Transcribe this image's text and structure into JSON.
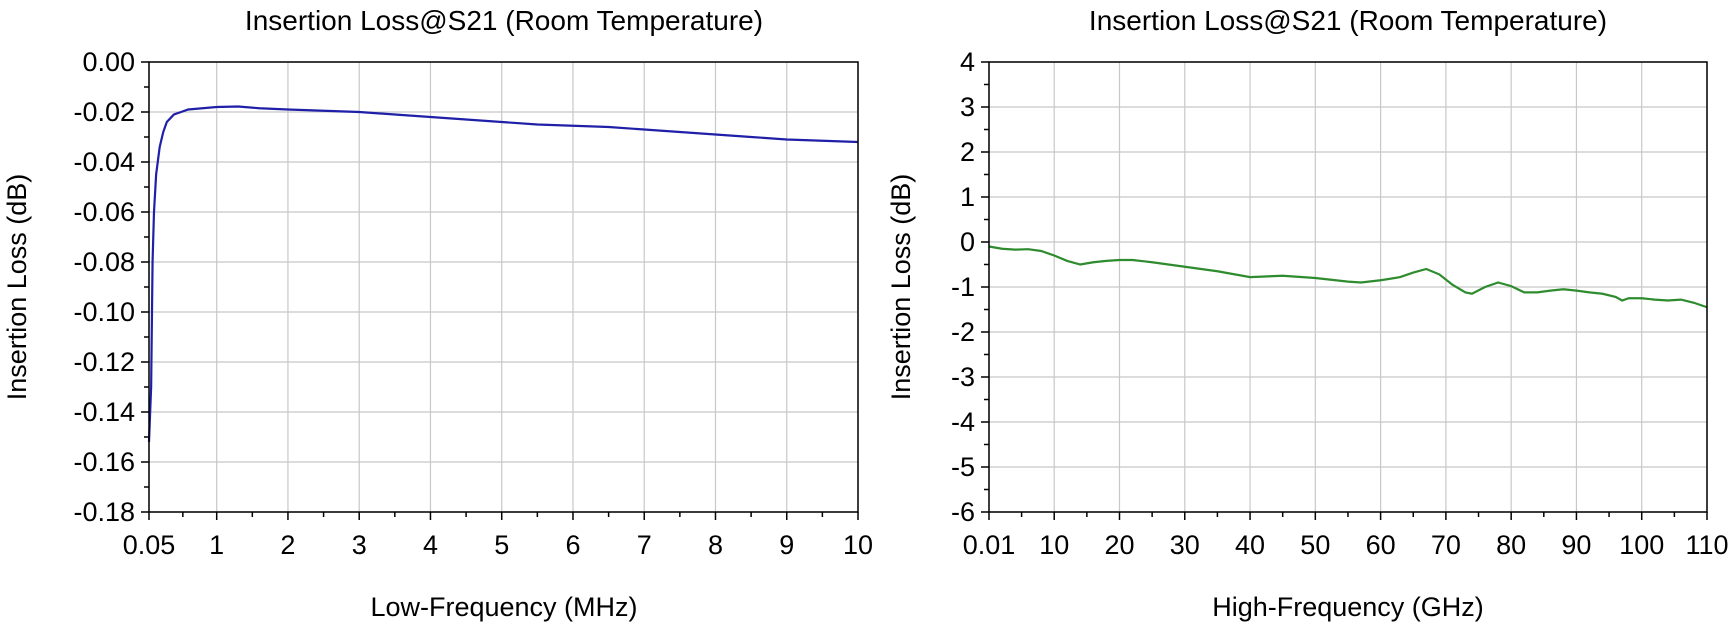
{
  "chart_data": [
    {
      "type": "line",
      "title": "Insertion Loss@S21 (Room Temperature)",
      "xlabel": "Low-Frequency (MHz)",
      "ylabel": "Insertion Loss (dB)",
      "x_ticks": [
        "0.05",
        "1",
        "2",
        "3",
        "4",
        "5",
        "6",
        "7",
        "8",
        "9",
        "10"
      ],
      "x_tick_values": [
        0.05,
        1,
        2,
        3,
        4,
        5,
        6,
        7,
        8,
        9,
        10
      ],
      "y_ticks": [
        "0.00",
        "-0.02",
        "-0.04",
        "-0.06",
        "-0.08",
        "-0.10",
        "-0.12",
        "-0.14",
        "-0.16",
        "-0.18"
      ],
      "y_tick_values": [
        0,
        -0.02,
        -0.04,
        -0.06,
        -0.08,
        -0.1,
        -0.12,
        -0.14,
        -0.16,
        -0.18
      ],
      "xlim": [
        0.05,
        10
      ],
      "ylim": [
        -0.18,
        0
      ],
      "grid": true,
      "color": "#1f1fa8",
      "series": [
        {
          "x": [
            0.05,
            0.08,
            0.1,
            0.12,
            0.15,
            0.2,
            0.25,
            0.3,
            0.4,
            0.5,
            0.6,
            0.8,
            1.0,
            1.3,
            1.6,
            2.0,
            2.5,
            3.0,
            3.5,
            4.0,
            4.5,
            5.0,
            5.5,
            6.0,
            6.5,
            7.0,
            7.5,
            8.0,
            8.5,
            9.0,
            9.5,
            10.0
          ],
          "y": [
            -0.152,
            -0.13,
            -0.08,
            -0.06,
            -0.045,
            -0.034,
            -0.028,
            -0.024,
            -0.021,
            -0.02,
            -0.019,
            -0.0185,
            -0.018,
            -0.0178,
            -0.0185,
            -0.019,
            -0.0195,
            -0.02,
            -0.021,
            -0.022,
            -0.023,
            -0.024,
            -0.025,
            -0.0255,
            -0.026,
            -0.027,
            -0.028,
            -0.029,
            -0.03,
            -0.031,
            -0.0315,
            -0.032
          ]
        }
      ]
    },
    {
      "type": "line",
      "title": "Insertion Loss@S21 (Room Temperature)",
      "xlabel": "High-Frequency (GHz)",
      "ylabel": "Insertion Loss (dB)",
      "x_ticks": [
        "0.01",
        "10",
        "20",
        "30",
        "40",
        "50",
        "60",
        "70",
        "80",
        "90",
        "100",
        "110"
      ],
      "x_tick_values": [
        0.01,
        10,
        20,
        30,
        40,
        50,
        60,
        70,
        80,
        90,
        100,
        110
      ],
      "y_ticks": [
        "4",
        "3",
        "2",
        "1",
        "0",
        "-1",
        "-2",
        "-3",
        "-4",
        "-5",
        "-6"
      ],
      "y_tick_values": [
        4,
        3,
        2,
        1,
        0,
        -1,
        -2,
        -3,
        -4,
        -5,
        -6
      ],
      "xlim": [
        0.01,
        110
      ],
      "ylim": [
        -6,
        4
      ],
      "grid": true,
      "color": "#2e8b2e",
      "series": [
        {
          "x": [
            0.01,
            2,
            4,
            6,
            8,
            10,
            12,
            14,
            16,
            18,
            20,
            22,
            25,
            30,
            35,
            40,
            45,
            50,
            55,
            57,
            60,
            63,
            65,
            67,
            69,
            71,
            73,
            74,
            76,
            78,
            80,
            82,
            84,
            86,
            88,
            90,
            92,
            94,
            96,
            97,
            98,
            100,
            102,
            104,
            106,
            108,
            110
          ],
          "y": [
            -0.1,
            -0.15,
            -0.17,
            -0.16,
            -0.2,
            -0.3,
            -0.42,
            -0.5,
            -0.45,
            -0.42,
            -0.4,
            -0.4,
            -0.45,
            -0.55,
            -0.65,
            -0.78,
            -0.75,
            -0.8,
            -0.88,
            -0.9,
            -0.85,
            -0.78,
            -0.68,
            -0.6,
            -0.72,
            -0.95,
            -1.12,
            -1.15,
            -1.0,
            -0.9,
            -0.98,
            -1.12,
            -1.12,
            -1.08,
            -1.05,
            -1.08,
            -1.12,
            -1.15,
            -1.22,
            -1.3,
            -1.25,
            -1.25,
            -1.28,
            -1.3,
            -1.28,
            -1.35,
            -1.45
          ]
        }
      ]
    }
  ]
}
